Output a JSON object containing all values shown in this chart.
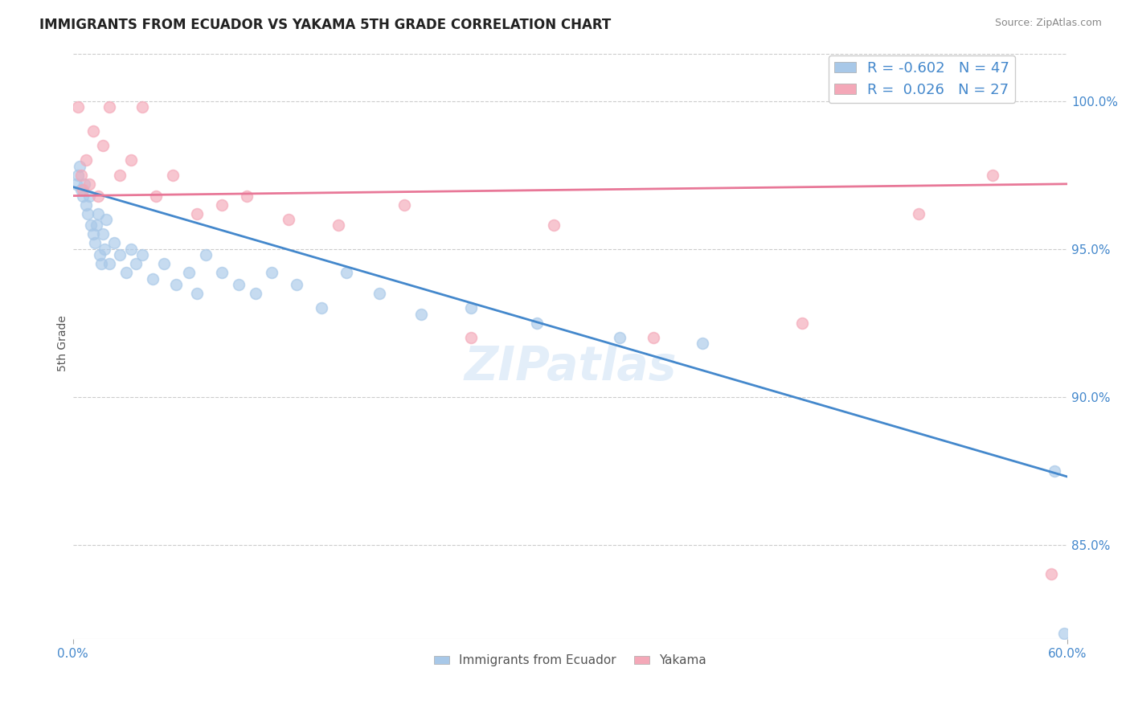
{
  "title": "IMMIGRANTS FROM ECUADOR VS YAKAMA 5TH GRADE CORRELATION CHART",
  "source": "Source: ZipAtlas.com",
  "xlabel_bottom": [
    "Immigrants from Ecuador",
    "Yakama"
  ],
  "ylabel": "5th Grade",
  "xlim": [
    0.0,
    0.6
  ],
  "ylim": [
    0.818,
    1.018
  ],
  "yticks": [
    0.85,
    0.9,
    0.95,
    1.0
  ],
  "ytick_labels": [
    "85.0%",
    "90.0%",
    "95.0%",
    "100.0%"
  ],
  "xticks": [
    0.0,
    0.6
  ],
  "xtick_labels": [
    "0.0%",
    "60.0%"
  ],
  "blue_R": -0.602,
  "blue_N": 47,
  "pink_R": 0.026,
  "pink_N": 27,
  "blue_color": "#a8c8e8",
  "pink_color": "#f4a8b8",
  "blue_line_color": "#4488cc",
  "pink_line_color": "#e87898",
  "watermark": "ZIPatlas",
  "blue_line_x0": 0.0,
  "blue_line_y0": 0.971,
  "blue_line_x1": 0.6,
  "blue_line_y1": 0.873,
  "pink_line_x0": 0.0,
  "pink_line_y0": 0.968,
  "pink_line_x1": 0.6,
  "pink_line_y1": 0.972,
  "blue_scatter_x": [
    0.002,
    0.003,
    0.004,
    0.005,
    0.006,
    0.007,
    0.008,
    0.009,
    0.01,
    0.011,
    0.012,
    0.013,
    0.014,
    0.015,
    0.016,
    0.017,
    0.018,
    0.019,
    0.02,
    0.022,
    0.025,
    0.028,
    0.032,
    0.035,
    0.038,
    0.042,
    0.048,
    0.055,
    0.062,
    0.07,
    0.075,
    0.08,
    0.09,
    0.1,
    0.11,
    0.12,
    0.135,
    0.15,
    0.165,
    0.185,
    0.21,
    0.24,
    0.28,
    0.33,
    0.38,
    0.592,
    0.598
  ],
  "blue_scatter_y": [
    0.972,
    0.975,
    0.978,
    0.97,
    0.968,
    0.972,
    0.965,
    0.962,
    0.968,
    0.958,
    0.955,
    0.952,
    0.958,
    0.962,
    0.948,
    0.945,
    0.955,
    0.95,
    0.96,
    0.945,
    0.952,
    0.948,
    0.942,
    0.95,
    0.945,
    0.948,
    0.94,
    0.945,
    0.938,
    0.942,
    0.935,
    0.948,
    0.942,
    0.938,
    0.935,
    0.942,
    0.938,
    0.93,
    0.942,
    0.935,
    0.928,
    0.93,
    0.925,
    0.92,
    0.918,
    0.875,
    0.82
  ],
  "pink_scatter_x": [
    0.003,
    0.005,
    0.006,
    0.008,
    0.01,
    0.012,
    0.015,
    0.018,
    0.022,
    0.028,
    0.035,
    0.042,
    0.05,
    0.06,
    0.075,
    0.09,
    0.105,
    0.13,
    0.16,
    0.2,
    0.24,
    0.29,
    0.35,
    0.44,
    0.51,
    0.555,
    0.59
  ],
  "pink_scatter_y": [
    0.998,
    0.975,
    0.97,
    0.98,
    0.972,
    0.99,
    0.968,
    0.985,
    0.998,
    0.975,
    0.98,
    0.998,
    0.968,
    0.975,
    0.962,
    0.965,
    0.968,
    0.96,
    0.958,
    0.965,
    0.92,
    0.958,
    0.92,
    0.925,
    0.962,
    0.975,
    0.84
  ]
}
